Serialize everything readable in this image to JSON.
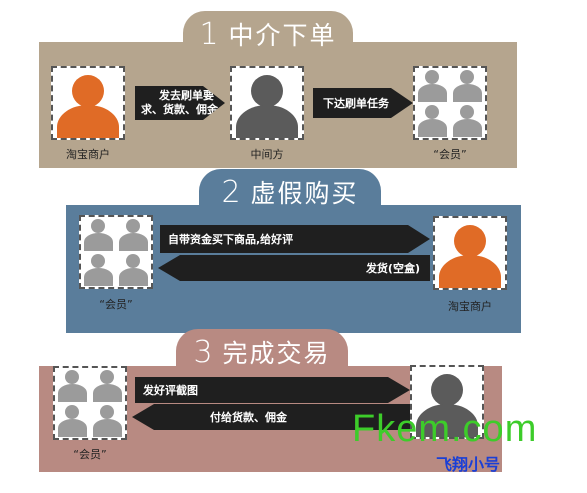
{
  "colors": {
    "panel1": "#b5a58e",
    "panel2": "#5a7d9b",
    "panel3": "#b88a82",
    "orange": "#e06b26",
    "dark_gray": "#5b5b5b",
    "light_gray": "#9b9b9b",
    "arrow": "#1f1f1f",
    "watermark_green": "#3dcc2a",
    "watermark_blue": "#1a3fd6"
  },
  "step1": {
    "number": "1",
    "title": "中介下单",
    "merchant_label": "淘宝商户",
    "agent_label": "中间方",
    "members_label": "“会员”",
    "arrow1_line1": "发去刷单要",
    "arrow1_line2": "求、货款、佣金",
    "arrow2": "下达刷单任务"
  },
  "step2": {
    "number": "2",
    "title": "虚假购买",
    "members_label": "“会员”",
    "merchant_label": "淘宝商户",
    "arrow_right": "自带资金买下商品,给好评",
    "arrow_left": "发货(空盒)"
  },
  "step3": {
    "number": "3",
    "title": "完成交易",
    "members_label": "“会员”",
    "arrow_right": "发好评截图",
    "arrow_left": "付给货款、佣金"
  },
  "watermark": {
    "site": "Fkem.com",
    "name": "飞翔小号"
  }
}
